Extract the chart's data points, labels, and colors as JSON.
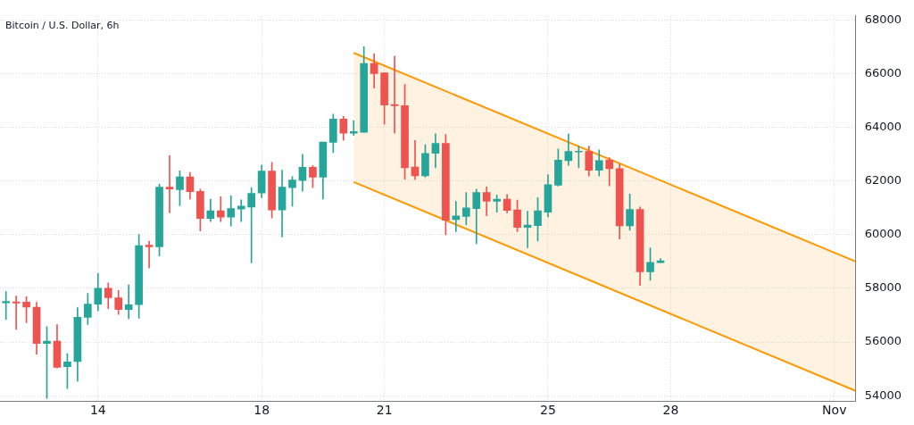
{
  "chart_data": {
    "type": "candlestick",
    "title": "Bitcoin / U.S. Dollar, 6h",
    "x": [
      "--10-11T18:00",
      "--10-12T00:00",
      "--10-12T06:00",
      "--10-12T12:00",
      "--10-12T18:00",
      "--10-13T00:00",
      "--10-13T06:00",
      "--10-13T12:00",
      "--10-13T18:00",
      "--10-14T00:00",
      "--10-14T06:00",
      "--10-14T12:00",
      "--10-14T18:00",
      "--10-15T00:00",
      "--10-15T06:00",
      "--10-15T12:00",
      "--10-15T18:00",
      "--10-16T00:00",
      "--10-16T06:00",
      "--10-16T12:00",
      "--10-16T18:00",
      "--10-17T00:00",
      "--10-17T06:00",
      "--10-17T12:00",
      "--10-17T18:00",
      "--10-18T00:00",
      "--10-18T06:00",
      "--10-18T12:00",
      "--10-18T18:00",
      "--10-19T00:00",
      "--10-19T06:00",
      "--10-19T12:00",
      "--10-19T18:00",
      "--10-20T00:00",
      "--10-20T06:00",
      "--10-20T12:00",
      "--10-20T18:00",
      "--10-21T00:00",
      "--10-21T06:00",
      "--10-21T12:00",
      "--10-21T18:00",
      "--10-22T00:00",
      "--10-22T06:00",
      "--10-22T12:00",
      "--10-22T18:00",
      "--10-23T00:00",
      "--10-23T06:00",
      "--10-23T12:00",
      "--10-23T18:00",
      "--10-24T00:00",
      "--10-24T06:00",
      "--10-24T12:00",
      "--10-24T18:00",
      "--10-25T00:00",
      "--10-25T06:00",
      "--10-25T12:00",
      "--10-25T18:00",
      "--10-26T00:00",
      "--10-26T06:00",
      "--10-26T12:00",
      "--10-26T18:00",
      "--10-27T00:00",
      "--10-27T06:00",
      "--10-27T12:00",
      "--10-27T18:00"
    ],
    "ohlc": [
      [
        57460,
        57880,
        56840,
        57510
      ],
      [
        57500,
        57710,
        56470,
        57450
      ],
      [
        57490,
        57690,
        56720,
        57300
      ],
      [
        57300,
        57480,
        55550,
        55950
      ],
      [
        55950,
        56570,
        53900,
        56030
      ],
      [
        56030,
        56650,
        55030,
        55060
      ],
      [
        55080,
        55570,
        54270,
        55260
      ],
      [
        55270,
        57280,
        54540,
        56920
      ],
      [
        56920,
        57810,
        56650,
        57410
      ],
      [
        57410,
        58560,
        57160,
        58000
      ],
      [
        58000,
        58200,
        57240,
        57650
      ],
      [
        57650,
        57920,
        57030,
        57210
      ],
      [
        57210,
        58130,
        56870,
        57390
      ],
      [
        57390,
        60010,
        56890,
        59590
      ],
      [
        59610,
        59760,
        58760,
        59545
      ],
      [
        59545,
        61890,
        59210,
        61770
      ],
      [
        61770,
        62940,
        60810,
        61700
      ],
      [
        61680,
        62380,
        61080,
        62150
      ],
      [
        62150,
        62320,
        61330,
        61600
      ],
      [
        61610,
        61700,
        60140,
        60600
      ],
      [
        60600,
        61320,
        60490,
        60890
      ],
      [
        60890,
        61410,
        60490,
        60650
      ],
      [
        60650,
        61450,
        60320,
        60970
      ],
      [
        60950,
        61300,
        60490,
        61060
      ],
      [
        61030,
        61750,
        58950,
        61540
      ],
      [
        61550,
        62590,
        61380,
        62370
      ],
      [
        62370,
        62690,
        60620,
        60920
      ],
      [
        60920,
        62400,
        59910,
        61770
      ],
      [
        61750,
        62160,
        61060,
        62040
      ],
      [
        62020,
        62990,
        61620,
        62510
      ],
      [
        62510,
        62580,
        61750,
        62140
      ],
      [
        62140,
        63450,
        61330,
        63450
      ],
      [
        63440,
        64490,
        63060,
        64310
      ],
      [
        64310,
        64410,
        63510,
        63780
      ],
      [
        63780,
        64250,
        63700,
        63840
      ],
      [
        63810,
        67000,
        63810,
        66380
      ],
      [
        66380,
        66740,
        65460,
        66000
      ],
      [
        66030,
        66030,
        64110,
        64830
      ],
      [
        64850,
        66650,
        63780,
        64800
      ],
      [
        64810,
        65600,
        62070,
        62490
      ],
      [
        62520,
        63510,
        62060,
        62190
      ],
      [
        62190,
        63350,
        62140,
        63030
      ],
      [
        63030,
        63760,
        62490,
        63400
      ],
      [
        63400,
        63730,
        60000,
        60540
      ],
      [
        60560,
        61240,
        60110,
        60700
      ],
      [
        60680,
        61570,
        60360,
        61000
      ],
      [
        60970,
        61700,
        59660,
        61570
      ],
      [
        61570,
        61780,
        60700,
        61240
      ],
      [
        61240,
        61480,
        60840,
        61320
      ],
      [
        61320,
        61500,
        60810,
        60900
      ],
      [
        60920,
        61290,
        60110,
        60270
      ],
      [
        60270,
        60870,
        59510,
        60360
      ],
      [
        60340,
        61380,
        59760,
        60890
      ],
      [
        60840,
        62240,
        60660,
        61860
      ],
      [
        61840,
        63190,
        61810,
        62780
      ],
      [
        62760,
        63750,
        62580,
        63100
      ],
      [
        63080,
        63300,
        62490,
        63100
      ],
      [
        63100,
        63300,
        62180,
        62400
      ],
      [
        62400,
        63160,
        62180,
        62760
      ],
      [
        62780,
        62870,
        61820,
        62460
      ],
      [
        62460,
        62630,
        59840,
        60330
      ],
      [
        60330,
        61510,
        60160,
        60940
      ],
      [
        60940,
        61030,
        58110,
        58620
      ],
      [
        58620,
        59510,
        58300,
        58970
      ],
      [
        58960,
        59110,
        58960,
        59030
      ]
    ],
    "colors": [
      "#26a69a",
      "#ef5350",
      "#ef5350",
      "#ef5350",
      "#26a69a",
      "#ef5350",
      "#26a69a",
      "#26a69a",
      "#26a69a",
      "#26a69a",
      "#ef5350",
      "#ef5350",
      "#26a69a",
      "#26a69a",
      "#ef5350",
      "#26a69a",
      "#ef5350",
      "#26a69a",
      "#ef5350",
      "#ef5350",
      "#26a69a",
      "#ef5350",
      "#26a69a",
      "#26a69a",
      "#26a69a",
      "#26a69a",
      "#ef5350",
      "#26a69a",
      "#26a69a",
      "#26a69a",
      "#ef5350",
      "#26a69a",
      "#26a69a",
      "#ef5350",
      "#26a69a",
      "#26a69a",
      "#ef5350",
      "#ef5350",
      "#ef5350",
      "#ef5350",
      "#ef5350",
      "#26a69a",
      "#26a69a",
      "#ef5350",
      "#26a69a",
      "#26a69a",
      "#26a69a",
      "#ef5350",
      "#26a69a",
      "#ef5350",
      "#ef5350",
      "#26a69a",
      "#26a69a",
      "#26a69a",
      "#26a69a",
      "#26a69a",
      "#26a69a",
      "#ef5350",
      "#26a69a",
      "#ef5350",
      "#ef5350",
      "#26a69a",
      "#ef5350",
      "#26a69a",
      "#26a69a"
    ],
    "series": [
      {
        "type": "line",
        "color": "#ff9800",
        "x": [
          "--10-20T06:00",
          "--11-01T12:30"
        ],
        "values": [
          66770,
          59000
        ]
      },
      {
        "type": "line",
        "color": "#ff9800",
        "x": [
          "--10-20T06:00",
          "--11-01T12:30"
        ],
        "values": [
          61960,
          54180
        ],
        "lower": [
          61960,
          54180
        ],
        "upper": [
          66770,
          59000
        ]
      }
    ],
    "xlim": [
      "--10-11T14:30",
      "--11-01T12:30"
    ],
    "xticks": [
      {
        "value": "--10-14",
        "label": "14"
      },
      {
        "value": "--10-18",
        "label": "18"
      },
      {
        "value": "--10-21",
        "label": "21"
      },
      {
        "value": "--10-25",
        "label": "25"
      },
      {
        "value": "--10-28",
        "label": "28"
      },
      {
        "value": "--11-01",
        "label": "Nov"
      }
    ],
    "ylim": [
      53800,
      68150
    ],
    "yticks": [
      54000,
      56000,
      58000,
      60000,
      62000,
      64000,
      66000,
      68000
    ],
    "grid": true,
    "legend": false
  }
}
